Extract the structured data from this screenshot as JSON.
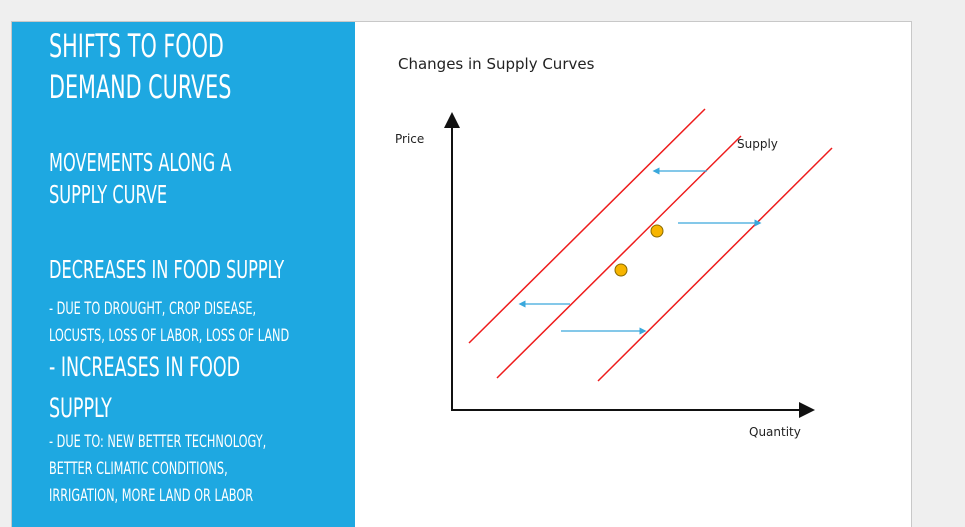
{
  "left": {
    "title_line1": "SHIFTS TO FOOD",
    "title_line2": "DEMAND CURVES",
    "heading1_line1": "MOVEMENTS ALONG A",
    "heading1_line2": "SUPPLY CURVE",
    "heading2": "DECREASES IN FOOD SUPPLY",
    "bullet1_line1": "- DUE TO DROUGHT, CROP DISEASE,",
    "bullet1_line2": "LOCUSTS, LOSS OF LABOR, LOSS OF LAND",
    "heading3_line1": "- INCREASES IN FOOD",
    "heading3_line2": "SUPPLY",
    "bullet2_line1": "- DUE TO: NEW BETTER TECHNOLOGY,",
    "bullet2_line2": "BETTER CLIMATIC CONDITIONS,",
    "bullet2_line3": "IRRIGATION, MORE LAND OR LABOR"
  },
  "diagram": {
    "title": "Changes in Supply Curves",
    "y_axis_label": "Price",
    "x_axis_label": "Quantity",
    "curve_label": "Supply",
    "colors": {
      "background": "#1ea8e1",
      "curve": "#ee1c1c",
      "arrow": "#3aa8dc",
      "point": "#f7b500",
      "axis": "#111111"
    }
  }
}
